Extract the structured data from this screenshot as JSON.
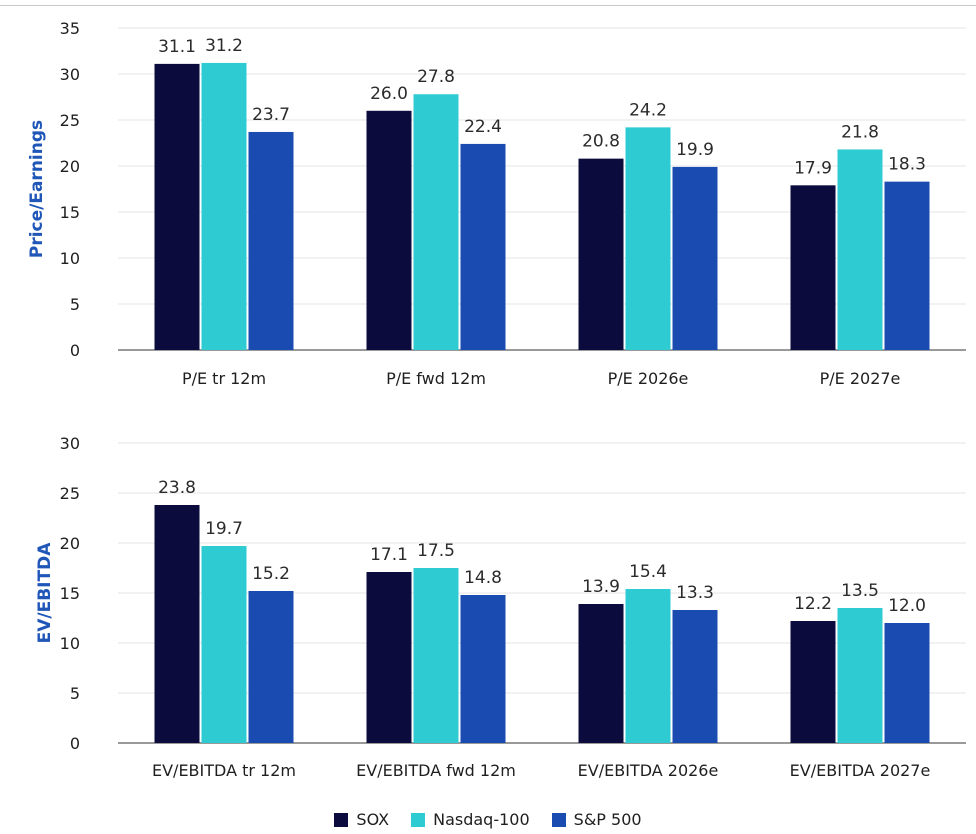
{
  "colors": {
    "SOX": "#0b0c3d",
    "Nasdaq-100": "#2ecbd3",
    "S&P 500": "#1a4bb0",
    "grid": "#e6e6e6",
    "axis": "#333333"
  },
  "legend": [
    {
      "name": "SOX",
      "color": "#0b0c3d"
    },
    {
      "name": "Nasdaq-100",
      "color": "#2ecbd3"
    },
    {
      "name": "S&P 500",
      "color": "#1a4bb0"
    }
  ],
  "chart_data": [
    {
      "type": "bar",
      "ylabel": "Price/Earnings",
      "xlabel": "",
      "ylim": [
        0,
        35
      ],
      "yticks": [
        0,
        5,
        10,
        15,
        20,
        25,
        30,
        35
      ],
      "grid": true,
      "categories": [
        "P/E tr 12m",
        "P/E fwd 12m",
        "P/E 2026e",
        "P/E 2027e"
      ],
      "series": [
        {
          "name": "SOX",
          "values": [
            31.1,
            26.0,
            20.8,
            17.9
          ],
          "labels": [
            "31.1",
            "26.0",
            "20.8",
            "17.9"
          ]
        },
        {
          "name": "Nasdaq-100",
          "values": [
            31.2,
            27.8,
            24.2,
            21.8
          ],
          "labels": [
            "31.2",
            "27.8",
            "24.2",
            "21.8"
          ]
        },
        {
          "name": "S&P 500",
          "values": [
            23.7,
            22.4,
            19.9,
            18.3
          ],
          "labels": [
            "23.7",
            "22.4",
            "19.9",
            "18.3"
          ]
        }
      ]
    },
    {
      "type": "bar",
      "ylabel": "EV/EBITDA",
      "xlabel": "",
      "ylim": [
        0,
        30
      ],
      "yticks": [
        0,
        5,
        10,
        15,
        20,
        25,
        30
      ],
      "grid": true,
      "categories": [
        "EV/EBITDA tr 12m",
        "EV/EBITDA fwd 12m",
        "EV/EBITDA 2026e",
        "EV/EBITDA 2027e"
      ],
      "series": [
        {
          "name": "SOX",
          "values": [
            23.8,
            17.1,
            13.9,
            12.2
          ],
          "labels": [
            "23.8",
            "17.1",
            "13.9",
            "12.2"
          ]
        },
        {
          "name": "Nasdaq-100",
          "values": [
            19.7,
            17.5,
            15.4,
            13.5
          ],
          "labels": [
            "19.7",
            "17.5",
            "15.4",
            "13.5"
          ]
        },
        {
          "name": "S&P 500",
          "values": [
            15.2,
            14.8,
            13.3,
            12.0
          ],
          "labels": [
            "15.2",
            "14.8",
            "13.3",
            "12.0"
          ]
        }
      ]
    }
  ]
}
